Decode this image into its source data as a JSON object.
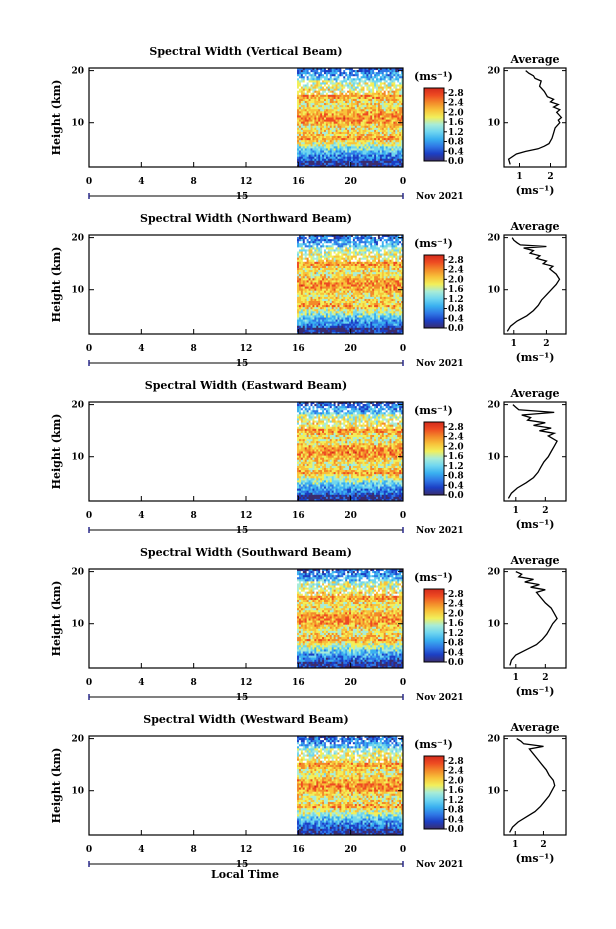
{
  "chart_data": {
    "type": "heatmap",
    "ylabel": "Height (km)",
    "xlabel": "Local Time",
    "date_label": "Nov 2021",
    "day_label": "15",
    "x_ticks": [
      "0",
      "4",
      "8",
      "12",
      "16",
      "20",
      "0"
    ],
    "y_ticks": [
      "20",
      "10"
    ],
    "xlim": [
      0,
      24
    ],
    "ylim": [
      1.5,
      20.5
    ],
    "data_start_hour": 15.9,
    "colorbar": {
      "unit": "(ms⁻¹)",
      "ticks": [
        "2.8",
        "2.4",
        "2.0",
        "1.6",
        "1.2",
        "0.8",
        "0.4",
        "0.0"
      ],
      "range": [
        0,
        3.0
      ],
      "colors": [
        "#3b2d6e",
        "#1c3fc4",
        "#2f78e6",
        "#3ab0f0",
        "#6fd6f0",
        "#a8ecd8",
        "#f2ef5a",
        "#f8c23a",
        "#f38a2a",
        "#ee4b22",
        "#d42a1c"
      ]
    },
    "average": {
      "title": "Average",
      "unit": "(ms⁻¹)",
      "y_ticks": [
        "20",
        "10"
      ]
    },
    "panels": [
      {
        "title": "Spectral Width (Vertical Beam)",
        "avg_x_ticks": [
          "1",
          "2"
        ],
        "avg_xlim": [
          0.5,
          2.5
        ],
        "profile": [
          [
            2.0,
            0.7
          ],
          [
            3.0,
            0.65
          ],
          [
            4.0,
            0.9
          ],
          [
            4.5,
            1.2
          ],
          [
            5.0,
            1.6
          ],
          [
            5.5,
            1.8
          ],
          [
            6.0,
            1.95
          ],
          [
            7.0,
            2.05
          ],
          [
            8.0,
            2.1
          ],
          [
            9.0,
            2.15
          ],
          [
            10.0,
            2.3
          ],
          [
            10.5,
            2.25
          ],
          [
            11.0,
            2.35
          ],
          [
            12.0,
            2.2
          ],
          [
            12.5,
            2.3
          ],
          [
            13.0,
            2.1
          ],
          [
            13.5,
            2.25
          ],
          [
            14.0,
            2.0
          ],
          [
            14.5,
            2.1
          ],
          [
            15.0,
            1.9
          ],
          [
            16.0,
            1.8
          ],
          [
            17.0,
            1.65
          ],
          [
            18.0,
            1.7
          ],
          [
            18.5,
            1.5
          ],
          [
            19.0,
            1.45
          ],
          [
            19.5,
            1.3
          ],
          [
            20.0,
            1.2
          ]
        ]
      },
      {
        "title": "Spectral Width (Northward Beam)",
        "avg_x_ticks": [
          "1",
          "2"
        ],
        "avg_xlim": [
          0.7,
          2.6
        ],
        "profile": [
          [
            2.0,
            0.8
          ],
          [
            3.0,
            0.9
          ],
          [
            4.0,
            1.1
          ],
          [
            5.0,
            1.4
          ],
          [
            6.0,
            1.6
          ],
          [
            7.0,
            1.75
          ],
          [
            8.0,
            1.85
          ],
          [
            9.0,
            2.0
          ],
          [
            10.0,
            2.15
          ],
          [
            11.0,
            2.3
          ],
          [
            12.0,
            2.4
          ],
          [
            13.0,
            2.3
          ],
          [
            14.0,
            2.1
          ],
          [
            14.5,
            2.2
          ],
          [
            15.0,
            1.9
          ],
          [
            15.5,
            2.0
          ],
          [
            16.0,
            1.7
          ],
          [
            16.5,
            1.8
          ],
          [
            17.0,
            1.5
          ],
          [
            17.5,
            1.6
          ],
          [
            18.0,
            1.3
          ],
          [
            18.3,
            2.0
          ],
          [
            18.6,
            1.2
          ],
          [
            19.0,
            1.1
          ],
          [
            19.5,
            1.0
          ],
          [
            20.0,
            0.95
          ]
        ]
      },
      {
        "title": "Spectral Width (Eastward Beam)",
        "avg_x_ticks": [
          "1",
          "2"
        ],
        "avg_xlim": [
          0.6,
          2.7
        ],
        "profile": [
          [
            2.0,
            0.75
          ],
          [
            3.0,
            0.85
          ],
          [
            4.0,
            1.05
          ],
          [
            5.0,
            1.35
          ],
          [
            6.0,
            1.6
          ],
          [
            7.0,
            1.75
          ],
          [
            8.0,
            1.85
          ],
          [
            9.0,
            1.95
          ],
          [
            10.0,
            2.1
          ],
          [
            11.0,
            2.2
          ],
          [
            12.0,
            2.3
          ],
          [
            13.0,
            2.4
          ],
          [
            14.0,
            2.1
          ],
          [
            14.5,
            2.3
          ],
          [
            15.0,
            1.8
          ],
          [
            15.5,
            2.2
          ],
          [
            16.0,
            1.6
          ],
          [
            16.5,
            2.0
          ],
          [
            17.0,
            1.4
          ],
          [
            17.5,
            1.5
          ],
          [
            18.0,
            1.2
          ],
          [
            18.5,
            2.3
          ],
          [
            19.0,
            1.1
          ],
          [
            19.5,
            1.0
          ],
          [
            20.0,
            0.9
          ]
        ]
      },
      {
        "title": "Spectral Width (Southward Beam)",
        "avg_x_ticks": [
          "1",
          "2"
        ],
        "avg_xlim": [
          0.6,
          2.7
        ],
        "profile": [
          [
            2.0,
            0.8
          ],
          [
            3.0,
            0.85
          ],
          [
            4.0,
            1.0
          ],
          [
            5.0,
            1.35
          ],
          [
            6.0,
            1.7
          ],
          [
            7.0,
            1.9
          ],
          [
            8.0,
            2.05
          ],
          [
            9.0,
            2.15
          ],
          [
            10.0,
            2.25
          ],
          [
            11.0,
            2.4
          ],
          [
            12.0,
            2.3
          ],
          [
            13.0,
            2.2
          ],
          [
            14.0,
            2.0
          ],
          [
            15.0,
            1.85
          ],
          [
            16.0,
            1.7
          ],
          [
            16.5,
            2.0
          ],
          [
            17.0,
            1.5
          ],
          [
            17.5,
            1.8
          ],
          [
            18.0,
            1.3
          ],
          [
            18.5,
            1.6
          ],
          [
            19.0,
            1.1
          ],
          [
            19.5,
            1.2
          ],
          [
            20.0,
            1.0
          ]
        ]
      },
      {
        "title": "Spectral Width (Westward Beam)",
        "avg_x_ticks": [
          "1",
          "2"
        ],
        "avg_xlim": [
          0.6,
          2.8
        ],
        "profile": [
          [
            2.0,
            0.8
          ],
          [
            3.0,
            0.9
          ],
          [
            4.0,
            1.1
          ],
          [
            5.0,
            1.4
          ],
          [
            6.0,
            1.7
          ],
          [
            7.0,
            1.9
          ],
          [
            8.0,
            2.05
          ],
          [
            9.0,
            2.2
          ],
          [
            10.0,
            2.3
          ],
          [
            11.0,
            2.4
          ],
          [
            12.0,
            2.35
          ],
          [
            13.0,
            2.2
          ],
          [
            14.0,
            2.1
          ],
          [
            15.0,
            1.95
          ],
          [
            16.0,
            1.8
          ],
          [
            17.0,
            1.65
          ],
          [
            18.0,
            1.5
          ],
          [
            18.5,
            2.0
          ],
          [
            19.0,
            1.3
          ],
          [
            19.5,
            1.2
          ],
          [
            20.0,
            1.05
          ]
        ]
      }
    ]
  }
}
